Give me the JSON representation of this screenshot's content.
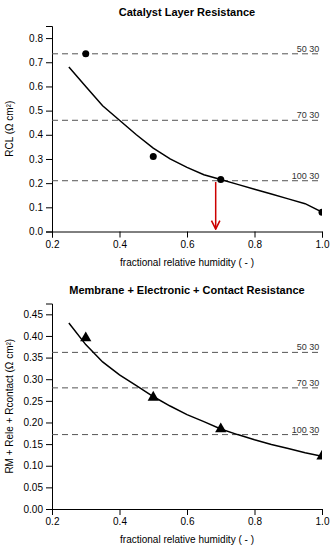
{
  "chart_data": [
    {
      "type": "line",
      "title": "Catalyst Layer Resistance",
      "x_label": "fractional relative humidity ( - )",
      "y_label": "RCL (Ω cm²)",
      "xlim": [
        0.2,
        1.0
      ],
      "ylim": [
        0.0,
        0.85
      ],
      "xticks": [
        0.2,
        0.4,
        0.6,
        0.8,
        {
          "value": 1.0,
          "label": "1.0"
        }
      ],
      "yticks": [
        {
          "value": 0.0,
          "label": "0.0"
        },
        0.1,
        0.2,
        0.3,
        0.4,
        0.5,
        0.6,
        0.7,
        0.8
      ],
      "grid": false,
      "series": [
        {
          "type": "line",
          "color": "#000000",
          "x": [
            0.25,
            0.3,
            0.35,
            0.4,
            0.45,
            0.5,
            0.55,
            0.6,
            0.65,
            0.7,
            0.75,
            0.8,
            0.85,
            0.9,
            0.95,
            1.0
          ],
          "values": [
            0.68,
            0.6,
            0.52,
            0.46,
            0.4,
            0.345,
            0.3,
            0.265,
            0.235,
            0.215,
            0.195,
            0.175,
            0.155,
            0.135,
            0.115,
            0.08
          ]
        },
        {
          "type": "scatter",
          "marker": "circle",
          "color": "#000000",
          "x": [
            0.3,
            0.5,
            0.7,
            1.0
          ],
          "values": [
            0.735,
            0.31,
            0.215,
            0.08
          ]
        }
      ],
      "hlines": [
        {
          "value": 0.735,
          "label": "50 30",
          "color": "#555555",
          "line_style": "dashed"
        },
        {
          "value": 0.46,
          "label": "70 30",
          "color": "#555555",
          "line_style": "dashed"
        },
        {
          "value": 0.21,
          "label": "100 30",
          "color": "#555555",
          "line_style": "dashed"
        }
      ],
      "arrow": {
        "x": 0.685,
        "y_start": 0.205,
        "y_end": 0.01,
        "color": "#cc0000"
      }
    },
    {
      "type": "line",
      "title": "Membrane + Electronic + Contact Resistance",
      "x_label": "fractional relative humidity ( - )",
      "y_label": "RM + Rele + Rcontact (Ω cm²)",
      "xlim": [
        0.2,
        1.0
      ],
      "ylim": [
        0.0,
        0.475
      ],
      "xticks": [
        0.2,
        0.4,
        0.6,
        0.8,
        {
          "value": 1.0,
          "label": "1.0"
        }
      ],
      "yticks": [
        {
          "value": 0.0,
          "label": "0.00"
        },
        0.05,
        {
          "value": 0.1,
          "label": "0.10"
        },
        0.15,
        {
          "value": 0.2,
          "label": "0.20"
        },
        0.25,
        {
          "value": 0.3,
          "label": "0.30"
        },
        0.35,
        {
          "value": 0.4,
          "label": "0.40"
        },
        0.45
      ],
      "grid": false,
      "series": [
        {
          "type": "line",
          "color": "#000000",
          "x": [
            0.25,
            0.3,
            0.35,
            0.4,
            0.45,
            0.5,
            0.55,
            0.6,
            0.65,
            0.7,
            0.75,
            0.8,
            0.85,
            0.9,
            0.95,
            1.0
          ],
          "values": [
            0.43,
            0.38,
            0.34,
            0.31,
            0.285,
            0.26,
            0.238,
            0.218,
            0.202,
            0.185,
            0.172,
            0.16,
            0.149,
            0.14,
            0.13,
            0.122
          ]
        },
        {
          "type": "scatter",
          "marker": "triangle",
          "color": "#000000",
          "x": [
            0.3,
            0.5,
            0.7,
            1.0
          ],
          "values": [
            0.395,
            0.258,
            0.185,
            0.122
          ]
        }
      ],
      "hlines": [
        {
          "value": 0.362,
          "label": "50 30",
          "color": "#555555",
          "line_style": "dashed"
        },
        {
          "value": 0.28,
          "label": "70 30",
          "color": "#555555",
          "line_style": "dashed"
        },
        {
          "value": 0.172,
          "label": "100 30",
          "color": "#555555",
          "line_style": "dashed"
        }
      ]
    }
  ]
}
